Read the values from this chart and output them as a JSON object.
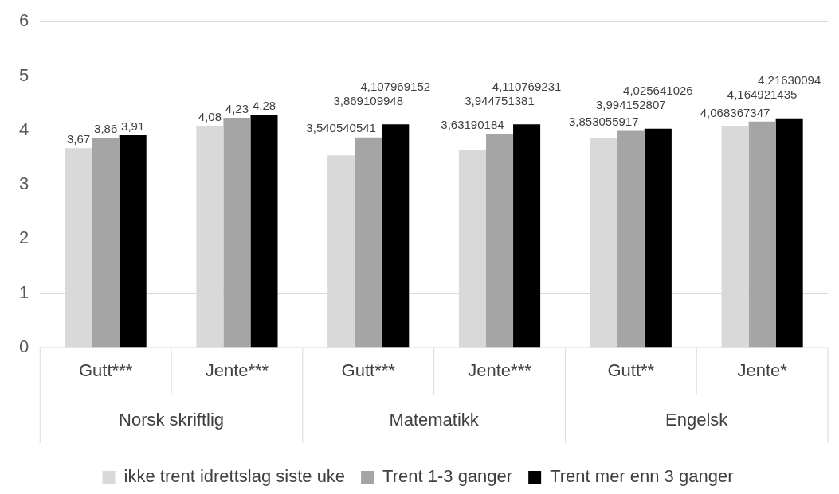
{
  "chart_data": {
    "type": "bar",
    "categories": [
      "Gutt***",
      "Jente***",
      "Gutt***",
      "Jente***",
      "Gutt**",
      "Jente*"
    ],
    "annotations": [
      "Norsk skriftlig",
      "Matematikk",
      "Engelsk"
    ],
    "series": [
      {
        "name": "ikke trent idrettslag siste uke",
        "color": "#d9d9d9",
        "values": [
          3.67,
          4.08,
          3.54,
          3.63,
          3.85,
          4.07
        ],
        "value_labels": [
          "3,67",
          "4,08",
          "3,540540541",
          "3,63190184",
          "3,853055917",
          "4,068367347"
        ]
      },
      {
        "name": "Trent 1-3 ganger",
        "color": "#a5a5a5",
        "values": [
          3.86,
          4.23,
          3.87,
          3.94,
          3.99,
          4.16
        ],
        "value_labels": [
          "3,86",
          "4,23",
          "3,869109948",
          "3,944751381",
          "3,994152807",
          "4,164921435"
        ]
      },
      {
        "name": "Trent mer enn 3 ganger",
        "color": "#000000",
        "values": [
          3.91,
          4.28,
          4.11,
          4.11,
          4.03,
          4.22
        ],
        "value_labels": [
          "3,91",
          "4,28",
          "4,107969152",
          "4,110769231",
          "4,025641026",
          "4,21630094"
        ]
      }
    ],
    "ylim": [
      0,
      6
    ],
    "yticks": [
      0,
      1,
      2,
      3,
      4,
      5,
      6
    ],
    "grid": "y",
    "legend": "bottom"
  }
}
